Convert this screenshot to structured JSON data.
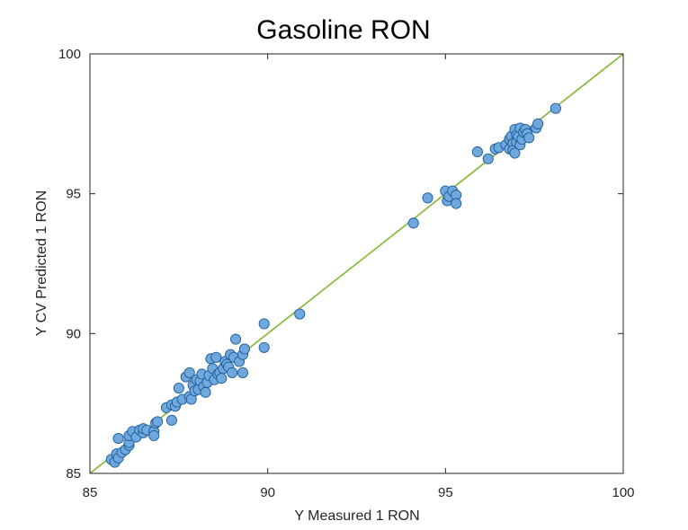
{
  "chart_data": {
    "type": "scatter",
    "title": "Gasoline RON",
    "xlabel": "Y Measured 1 RON",
    "ylabel": "Y CV Predicted 1 RON",
    "xlim": [
      85,
      100
    ],
    "ylim": [
      85,
      100
    ],
    "xticks": [
      "85",
      "90",
      "95",
      "100"
    ],
    "yticks": [
      "85",
      "90",
      "95",
      "100"
    ],
    "grid": false,
    "colors": {
      "marker_fill": "#6fa8dc",
      "marker_edge": "#1f5d99",
      "reference_line": "#7ccc3a",
      "reference_line_dark": "#8c8c1a",
      "axis": "#262626"
    },
    "reference_line": {
      "x": [
        85,
        100
      ],
      "y": [
        85,
        100
      ]
    },
    "points": [
      [
        85.6,
        85.5
      ],
      [
        85.7,
        85.4
      ],
      [
        85.75,
        85.7
      ],
      [
        85.8,
        85.55
      ],
      [
        85.9,
        85.75
      ],
      [
        85.8,
        86.25
      ],
      [
        86.0,
        85.85
      ],
      [
        86.1,
        86.0
      ],
      [
        86.1,
        86.1
      ],
      [
        86.1,
        86.35
      ],
      [
        86.2,
        86.5
      ],
      [
        86.3,
        86.3
      ],
      [
        86.4,
        86.55
      ],
      [
        86.5,
        86.45
      ],
      [
        86.5,
        86.6
      ],
      [
        86.6,
        86.55
      ],
      [
        86.8,
        86.5
      ],
      [
        86.8,
        86.35
      ],
      [
        86.85,
        86.8
      ],
      [
        86.9,
        86.85
      ],
      [
        87.15,
        87.35
      ],
      [
        87.3,
        87.45
      ],
      [
        87.3,
        86.9
      ],
      [
        87.4,
        87.4
      ],
      [
        87.45,
        87.55
      ],
      [
        87.5,
        88.05
      ],
      [
        87.6,
        87.65
      ],
      [
        87.7,
        88.45
      ],
      [
        87.8,
        88.6
      ],
      [
        87.8,
        87.75
      ],
      [
        87.85,
        87.65
      ],
      [
        87.9,
        88.15
      ],
      [
        87.95,
        87.95
      ],
      [
        88.0,
        88.35
      ],
      [
        88.05,
        88.0
      ],
      [
        88.1,
        88.3
      ],
      [
        88.15,
        88.55
      ],
      [
        88.2,
        88.1
      ],
      [
        88.25,
        87.9
      ],
      [
        88.3,
        88.25
      ],
      [
        88.35,
        88.5
      ],
      [
        88.4,
        89.1
      ],
      [
        88.45,
        88.75
      ],
      [
        88.5,
        88.35
      ],
      [
        88.55,
        89.15
      ],
      [
        88.6,
        88.55
      ],
      [
        88.65,
        88.6
      ],
      [
        88.7,
        88.4
      ],
      [
        88.75,
        88.75
      ],
      [
        88.8,
        89.0
      ],
      [
        88.85,
        88.9
      ],
      [
        88.9,
        88.8
      ],
      [
        88.95,
        89.25
      ],
      [
        89.0,
        88.6
      ],
      [
        89.05,
        89.15
      ],
      [
        89.1,
        89.8
      ],
      [
        89.2,
        89.0
      ],
      [
        89.3,
        89.25
      ],
      [
        89.35,
        89.45
      ],
      [
        89.3,
        88.6
      ],
      [
        89.9,
        90.35
      ],
      [
        89.9,
        89.5
      ],
      [
        90.9,
        90.7
      ],
      [
        94.1,
        93.95
      ],
      [
        94.5,
        94.85
      ],
      [
        95.0,
        95.1
      ],
      [
        95.05,
        94.75
      ],
      [
        95.1,
        94.9
      ],
      [
        95.2,
        95.1
      ],
      [
        95.3,
        94.95
      ],
      [
        95.3,
        94.65
      ],
      [
        95.9,
        96.5
      ],
      [
        96.2,
        96.25
      ],
      [
        96.4,
        96.6
      ],
      [
        96.5,
        96.65
      ],
      [
        96.7,
        96.75
      ],
      [
        96.8,
        96.95
      ],
      [
        96.8,
        96.6
      ],
      [
        96.85,
        97.05
      ],
      [
        96.9,
        96.8
      ],
      [
        96.9,
        96.55
      ],
      [
        96.95,
        97.3
      ],
      [
        96.95,
        96.45
      ],
      [
        97.0,
        97.1
      ],
      [
        97.0,
        96.85
      ],
      [
        97.05,
        97.05
      ],
      [
        97.1,
        97.35
      ],
      [
        97.1,
        96.75
      ],
      [
        97.15,
        96.95
      ],
      [
        97.2,
        97.2
      ],
      [
        97.25,
        97.3
      ],
      [
        97.3,
        97.15
      ],
      [
        97.35,
        97.0
      ],
      [
        97.55,
        97.35
      ],
      [
        97.6,
        97.5
      ],
      [
        98.1,
        98.05
      ]
    ]
  }
}
